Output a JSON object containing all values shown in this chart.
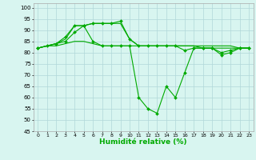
{
  "xlabel": "Humidité relative (%)",
  "background_color": "#d8f5f0",
  "grid_color": "#b0d8d8",
  "line_color": "#00aa00",
  "xlim": [
    -0.5,
    23.5
  ],
  "ylim": [
    45,
    102
  ],
  "yticks": [
    45,
    50,
    55,
    60,
    65,
    70,
    75,
    80,
    85,
    90,
    95,
    100
  ],
  "xticks": [
    0,
    1,
    2,
    3,
    4,
    5,
    6,
    7,
    8,
    9,
    10,
    11,
    12,
    13,
    14,
    15,
    16,
    17,
    18,
    19,
    20,
    21,
    22,
    23
  ],
  "series": [
    {
      "x": [
        0,
        1,
        2,
        3,
        4,
        5,
        6,
        7,
        8,
        9,
        10,
        11,
        12,
        13,
        14,
        15,
        16,
        17,
        18,
        19,
        20,
        21,
        22,
        23
      ],
      "y": [
        82,
        83,
        83,
        84,
        85,
        85,
        84,
        83,
        83,
        83,
        83,
        83,
        83,
        83,
        83,
        83,
        83,
        83,
        83,
        83,
        83,
        83,
        82,
        82
      ],
      "marker": false
    },
    {
      "x": [
        0,
        1,
        2,
        3,
        4,
        5,
        6,
        7,
        8,
        9,
        10,
        11,
        12,
        13,
        14,
        15,
        16,
        17,
        18,
        19,
        20,
        21,
        22,
        23
      ],
      "y": [
        82,
        83,
        84,
        86,
        92,
        92,
        93,
        93,
        93,
        93,
        86,
        83,
        83,
        83,
        83,
        83,
        83,
        83,
        82,
        82,
        82,
        82,
        82,
        82
      ],
      "marker": false
    },
    {
      "x": [
        0,
        1,
        2,
        3,
        4,
        5,
        6,
        7,
        8,
        9,
        10,
        11,
        12,
        13,
        14,
        15,
        16,
        17,
        18,
        19,
        20,
        21,
        22,
        23
      ],
      "y": [
        82,
        83,
        84,
        87,
        92,
        92,
        93,
        93,
        93,
        94,
        86,
        83,
        83,
        83,
        83,
        83,
        81,
        82,
        82,
        82,
        79,
        80,
        82,
        82
      ],
      "marker": true,
      "markersize": 2.0
    },
    {
      "x": [
        0,
        3,
        4,
        5,
        6,
        7,
        8,
        9,
        10,
        11,
        12,
        13,
        14,
        15,
        16,
        17,
        18,
        19,
        20,
        21,
        22,
        23
      ],
      "y": [
        82,
        85,
        89,
        92,
        85,
        83,
        83,
        83,
        83,
        60,
        55,
        53,
        65,
        60,
        71,
        82,
        82,
        82,
        80,
        81,
        82,
        82
      ],
      "marker": true,
      "markersize": 2.0
    }
  ]
}
